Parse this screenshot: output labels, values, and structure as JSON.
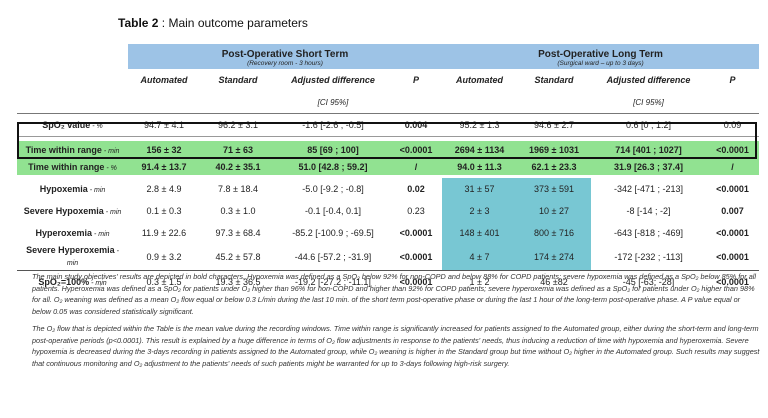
{
  "title": {
    "prefix": "Table 2",
    "rest": " : Main outcome parameters"
  },
  "groups": {
    "short": {
      "name": "Post-Operative Short Term",
      "sub": "(Recovery room - 3 hours)"
    },
    "long": {
      "name": "Post-Operative Long Term",
      "sub": "(Surgical ward – up to 3 days)"
    }
  },
  "columns": {
    "automated": "Automated",
    "standard": "Standard",
    "adjusted": "Adjusted difference",
    "p": "P",
    "ci": "[CI 95%]"
  },
  "rows": [
    {
      "name": "SpO₂ value",
      "unit": " - %",
      "s_auto": "94.7 ± 4.1",
      "s_std": "96.2 ± 3.1",
      "s_adj": "-1.6 [-2.6 ; -0.5]",
      "s_p": "0.004",
      "l_auto": "95.2 ± 1.3",
      "l_std": "94.6 ± 2.7",
      "l_adj": "0.6 [0 ; 1.2]",
      "l_p": "0.09"
    },
    {
      "name": "Time within range",
      "unit": " - min",
      "s_auto": "156 ± 32",
      "s_std": "71 ± 63",
      "s_adj": "85 [69 ; 100]",
      "s_p": "<0.0001",
      "l_auto": "2694 ± 1134",
      "l_std": "1969 ± 1031",
      "l_adj": "714 [401 ; 1027]",
      "l_p": "<0.0001"
    },
    {
      "name": "Time within range",
      "unit": " - %",
      "s_auto": "91.4 ± 13.7",
      "s_std": "40.2 ± 35.1",
      "s_adj": "51.0 [42.8 ; 59.2]",
      "s_p": "/",
      "l_auto": "94.0 ± 11.3",
      "l_std": "62.1 ± 23.3",
      "l_adj": "31.9 [26.3 ; 37.4]",
      "l_p": "/"
    },
    {
      "name": "Hypoxemia",
      "unit": " - min",
      "s_auto": "2.8 ± 4.9",
      "s_std": "7.8 ± 18.4",
      "s_adj": "-5.0 [-9.2 ; -0.8]",
      "s_p": "0.02",
      "l_auto": "31 ± 57",
      "l_std": "373 ± 591",
      "l_adj": "-342 [-471 ; -213]",
      "l_p": "<0.0001"
    },
    {
      "name": "Severe Hypoxemia",
      "unit": " - min",
      "s_auto": "0.1 ± 0.3",
      "s_std": "0.3 ± 1.0",
      "s_adj": "-0.1 [-0.4, 0.1]",
      "s_p": "0.23",
      "l_auto": "2 ± 3",
      "l_std": "10 ± 27",
      "l_adj": "-8 [-14 ; -2]",
      "l_p": "0.007"
    },
    {
      "name": "Hyperoxemia",
      "unit": " - min",
      "s_auto": "11.9 ± 22.6",
      "s_std": "97.3 ± 68.4",
      "s_adj": "-85.2 [-100.9 ; -69.5]",
      "s_p": "<0.0001",
      "l_auto": "148 ± 401",
      "l_std": "800 ± 716",
      "l_adj": "-643 [-818 ; -469]",
      "l_p": "<0.0001"
    },
    {
      "name": "Severe Hyperoxemia",
      "unit": " - min",
      "s_auto": "0.9 ± 3.2",
      "s_std": "45.2 ± 57.8",
      "s_adj": "-44.6 [-57.2 ; -31.9]",
      "s_p": "<0.0001",
      "l_auto": "4 ± 7",
      "l_std": "174 ± 274",
      "l_adj": "-172 [-232 ; -113]",
      "l_p": "<0.0001"
    },
    {
      "name": "SpO₂=100%",
      "unit": " - min",
      "s_auto": "0.3 ± 1.5",
      "s_std": "19.3 ± 36.5",
      "s_adj": "-19.2 [-27.2 ; -11.1]",
      "s_p": "<0.0001",
      "l_auto": "1 ± 2",
      "l_std": "46 ±82",
      "l_adj": "-45 [-63; -28]",
      "l_p": "<0.0001"
    }
  ],
  "notes": {
    "p1": "The main study objectives' results are depicted in bold characters. Hypoxemia was defined as a SpO₂ below 92% for non-COPD and below 88% for COPD patients; severe hypoxemia was defined as a SpO₂ below 85% for all patients. Hyperoxemia was defined as a SpO₂ for patients under O₂ higher than 96% for non-COPD and higher than 92% for COPD patients; severe hyperoxemia was defined as a SpO₂ for patients under O₂ higher than 98% for all. O₂ weaning was defined as a mean O₂ flow equal or below 0.3 L/min during the last 10 min. of the short term post-operative phase or during the last 1 hour of the long-term post-operative phase. A P value equal or below 0.05 was considered statistically significant.",
    "p2": "The O₂ flow that is depicted within the Table is the mean value during the recording windows. Time within range is significantly increased for patients assigned to the Automated group, either during the short-term and long-term post-operative periods (p<0.0001). This result is explained by a huge difference in terms of O₂ flow adjustments in response to the patients' needs, thus inducing a reduction of time with hypoxemia and hyperoxemia. Severe hypoxemia is decreased during the 3-days recording in patients assigned to the Automated group, while O₂ weaning is higher in the Standard group but time without O₂ higher in the Automated group. Such results may suggest that continuous monitoring and O₂ adjustment to the patients' needs of such patients might be warranted for up to 3-days following high-risk surgery."
  }
}
